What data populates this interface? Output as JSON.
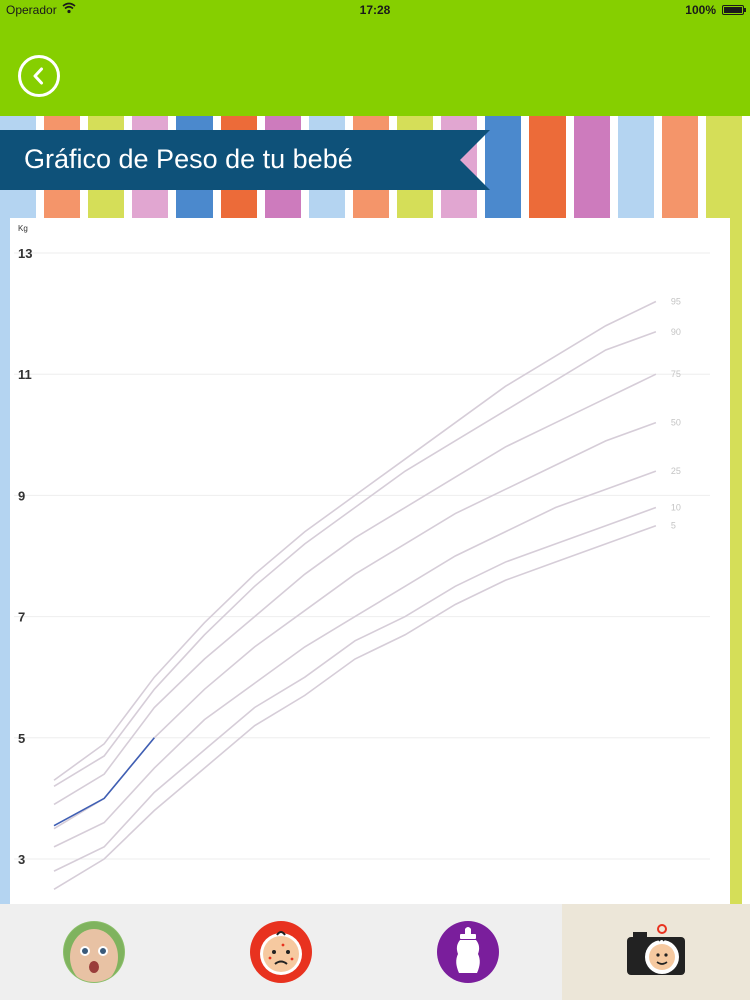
{
  "status_bar": {
    "carrier": "Operador",
    "time": "17:28",
    "battery": "100%"
  },
  "nav": {
    "back_icon": "chevron-left-icon"
  },
  "header": {
    "title": "Gráfico de Peso de tu bebé"
  },
  "colors": {
    "nav_green": "#86cf00",
    "banner_blue": "#0e5179",
    "baby_line": "#3f5fb4",
    "percentile_line": "#d6cdd8",
    "stripes": [
      "#b4d4f1",
      "#f4956a",
      "#d5de58",
      "#e1a6d1",
      "#4b89cd",
      "#ec6b39",
      "#cd7bbd",
      "#b4d4f1",
      "#f4956a",
      "#d5de58",
      "#e1a6d1",
      "#4b89cd",
      "#ec6b39",
      "#cd7bbd",
      "#b4d4f1",
      "#f4956a",
      "#d5de58"
    ]
  },
  "chart_data": {
    "type": "line",
    "ylabel": "Kg",
    "yticks": [
      3,
      5,
      7,
      9,
      11,
      13
    ],
    "ylim": [
      2.3,
      13.4
    ],
    "xlim": [
      0,
      12.6
    ],
    "grid": true,
    "x": [
      0,
      1,
      2,
      3,
      4,
      5,
      6,
      7,
      8,
      9,
      10,
      11,
      12
    ],
    "series": [
      {
        "name": "95",
        "values": [
          4.3,
          4.9,
          6.0,
          6.9,
          7.7,
          8.4,
          9.0,
          9.6,
          10.2,
          10.8,
          11.3,
          11.8,
          12.2
        ]
      },
      {
        "name": "90",
        "values": [
          4.2,
          4.7,
          5.8,
          6.7,
          7.5,
          8.2,
          8.8,
          9.4,
          9.9,
          10.4,
          10.9,
          11.4,
          11.7
        ]
      },
      {
        "name": "75",
        "values": [
          3.9,
          4.4,
          5.5,
          6.3,
          7.0,
          7.7,
          8.3,
          8.8,
          9.3,
          9.8,
          10.2,
          10.6,
          11.0
        ]
      },
      {
        "name": "50",
        "values": [
          3.5,
          4.0,
          5.0,
          5.8,
          6.5,
          7.1,
          7.7,
          8.2,
          8.7,
          9.1,
          9.5,
          9.9,
          10.2
        ]
      },
      {
        "name": "25",
        "values": [
          3.2,
          3.6,
          4.5,
          5.3,
          5.9,
          6.5,
          7.0,
          7.5,
          8.0,
          8.4,
          8.8,
          9.1,
          9.4
        ]
      },
      {
        "name": "10",
        "values": [
          2.8,
          3.2,
          4.1,
          4.8,
          5.5,
          6.0,
          6.6,
          7.0,
          7.5,
          7.9,
          8.2,
          8.5,
          8.8
        ]
      },
      {
        "name": "5",
        "values": [
          2.5,
          3.0,
          3.8,
          4.5,
          5.2,
          5.7,
          6.3,
          6.7,
          7.2,
          7.6,
          7.9,
          8.2,
          8.5
        ]
      }
    ],
    "baby": {
      "x": [
        0,
        1,
        2
      ],
      "values": [
        3.55,
        4.0,
        5.0
      ]
    }
  },
  "tabs": [
    {
      "name": "baby-photo",
      "active": false
    },
    {
      "name": "baby-health",
      "active": false
    },
    {
      "name": "baby-bottle",
      "active": false
    },
    {
      "name": "baby-camera",
      "active": true
    }
  ]
}
